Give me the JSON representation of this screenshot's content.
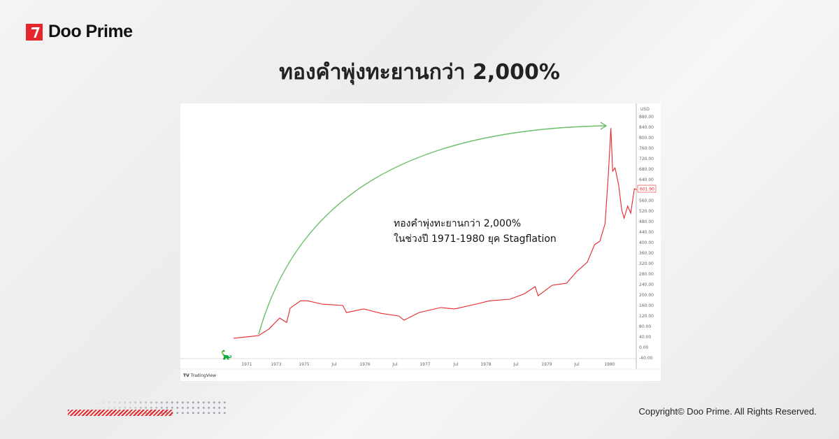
{
  "brand": {
    "name": "Doo Prime",
    "accent": "#e4262d"
  },
  "title": "ทองคำพุ่งทะยานกว่า 2,000%",
  "copyright": "Copyright© Doo Prime. All Rights Reserved.",
  "chart_data": {
    "type": "line",
    "currency_label": "USD",
    "watermark": "TradingView",
    "annotation": [
      "ทองคำพุ่งทะยานกว่า 2,000%",
      "ในช่วงปี 1971-1980 ยุค Stagflation"
    ],
    "last_price_label": "601.90",
    "line_color": "#e8262d",
    "arrow_color": "#6abf69",
    "ylim": [
      -40,
      880
    ],
    "y_ticks": [
      "880.00",
      "840.00",
      "800.00",
      "760.00",
      "720.00",
      "680.00",
      "640.00",
      "560.00",
      "520.00",
      "480.00",
      "440.00",
      "400.00",
      "360.00",
      "320.00",
      "280.00",
      "240.00",
      "200.00",
      "160.00",
      "120.00",
      "80.00",
      "40.00",
      "0.00",
      "-40.00"
    ],
    "x_ticks": [
      {
        "label": "1971",
        "t": 1971
      },
      {
        "label": "1973",
        "t": 1973
      },
      {
        "label": "1975",
        "t": 1975
      },
      {
        "label": "Jul",
        "t": 1975.5
      },
      {
        "label": "1976",
        "t": 1976
      },
      {
        "label": "Jul",
        "t": 1976.5
      },
      {
        "label": "1977",
        "t": 1977
      },
      {
        "label": "Jul",
        "t": 1977.5
      },
      {
        "label": "1978",
        "t": 1978
      },
      {
        "label": "Jul",
        "t": 1978.5
      },
      {
        "label": "1979",
        "t": 1979
      },
      {
        "label": "Jul",
        "t": 1979.5
      },
      {
        "label": "1980",
        "t": 1980
      }
    ],
    "x": [
      1970.1,
      1971.8,
      1972.5,
      1973.25,
      1973.75,
      1974.0,
      1974.75,
      1975.06,
      1975.3,
      1975.64,
      1975.7,
      1975.98,
      1976.27,
      1976.56,
      1976.65,
      1976.9,
      1977.25,
      1977.48,
      1977.83,
      1978.06,
      1978.4,
      1978.64,
      1978.81,
      1978.86,
      1979.09,
      1979.33,
      1979.5,
      1979.66,
      1979.77,
      1979.85,
      1979.93,
      1979.98,
      1980.02,
      1980.05,
      1980.09,
      1980.15,
      1980.2,
      1980.24,
      1980.3,
      1980.35,
      1980.41,
      1980.45
    ],
    "y": [
      35,
      45,
      70,
      112,
      95,
      150,
      178,
      178,
      165,
      160,
      133,
      147,
      130,
      120,
      104,
      133,
      152,
      147,
      165,
      178,
      184,
      205,
      232,
      197,
      237,
      245,
      290,
      325,
      392,
      405,
      472,
      659,
      837,
      672,
      685,
      619,
      525,
      493,
      539,
      512,
      605,
      601.9
    ]
  }
}
